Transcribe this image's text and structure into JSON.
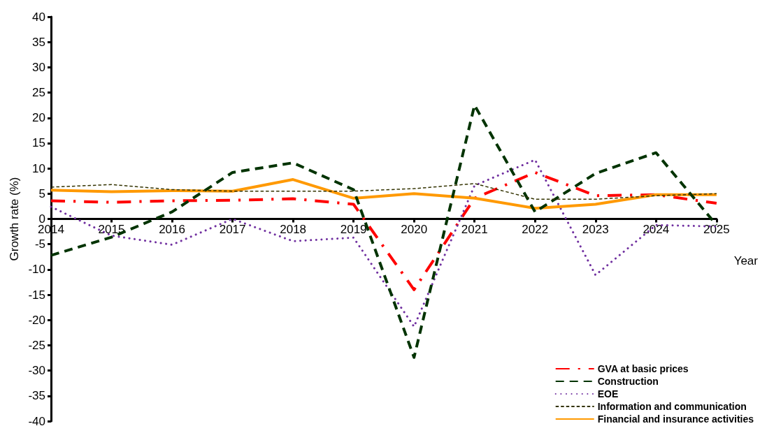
{
  "chart_data": {
    "type": "line",
    "xlabel": "Year",
    "ylabel": "Growth rate (%)",
    "categories": [
      "2014",
      "2015",
      "2016",
      "2017",
      "2018",
      "2019",
      "2020",
      "2021",
      "2022",
      "2023",
      "2024",
      "2025"
    ],
    "ylim": [
      -40,
      40
    ],
    "yticks": [
      -40,
      -35,
      -30,
      -25,
      -20,
      -15,
      -10,
      -5,
      0,
      5,
      10,
      15,
      20,
      25,
      30,
      35,
      40
    ],
    "grid": false,
    "legend": "bottom right",
    "marker": "none",
    "series": [
      {
        "name": "GVA at basic prices",
        "color": "#ff0000",
        "line_style": "dashdot",
        "values": [
          3.6,
          3.3,
          3.6,
          3.7,
          4.0,
          2.9,
          -14.0,
          4.1,
          9.2,
          4.6,
          4.8,
          3.1
        ]
      },
      {
        "name": "Construction",
        "color": "#003300",
        "line_style": "dashed",
        "values": [
          -7.2,
          -3.6,
          1.4,
          9.2,
          11.1,
          5.8,
          -27.4,
          22.5,
          1.4,
          9.0,
          13.1,
          -1.2
        ]
      },
      {
        "name": "EOE",
        "color": "#7030a0",
        "line_style": "dotted",
        "values": [
          2.4,
          -3.3,
          -5.1,
          0.0,
          -4.4,
          -3.7,
          -21.3,
          6.6,
          11.7,
          -11.1,
          -1.2,
          -1.5
        ]
      },
      {
        "name": "Information and communication",
        "color": "#333300",
        "line_style": "dashed",
        "values": [
          6.3,
          6.8,
          5.8,
          5.5,
          5.5,
          5.5,
          6.0,
          7.0,
          3.9,
          3.9,
          4.6,
          5.0
        ]
      },
      {
        "name": "Financial and insurance activities",
        "color": "#ff9900",
        "line_style": "solid",
        "values": [
          5.7,
          5.4,
          5.6,
          5.5,
          7.8,
          4.1,
          5.0,
          4.1,
          2.1,
          2.9,
          4.8,
          4.8
        ]
      }
    ]
  }
}
